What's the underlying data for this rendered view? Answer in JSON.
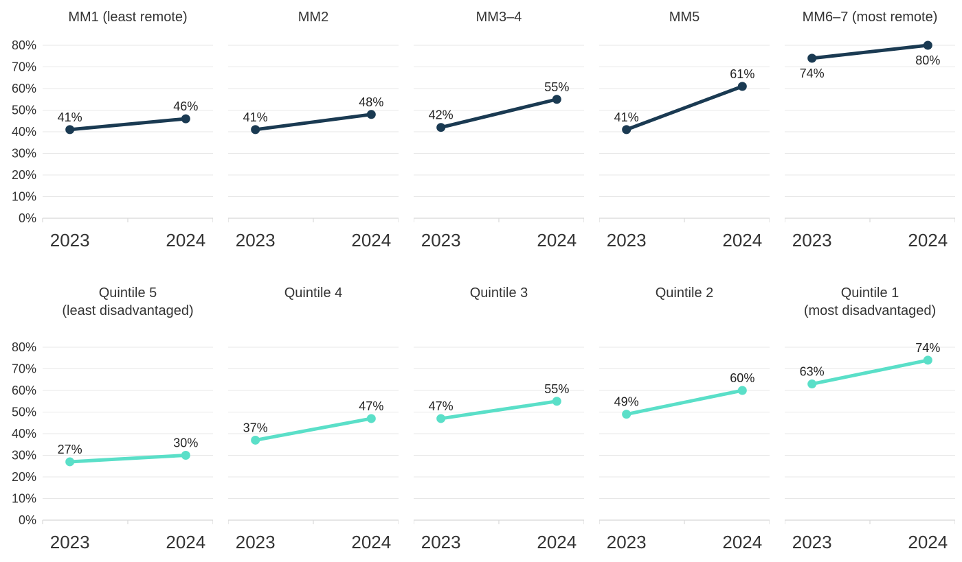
{
  "chart_data": {
    "type": "line",
    "layout_hint": "small multiples, 2 rows x 5 columns; shared y axis; gridlines on; no legend; y tick labels only on first chart of each row; x tick labels under every chart",
    "x": [
      "2023",
      "2024"
    ],
    "ylim": [
      0,
      80
    ],
    "ytick_step": 10,
    "ytick_labels": [
      "0%",
      "10%",
      "20%",
      "30%",
      "40%",
      "50%",
      "60%",
      "70%",
      "80%"
    ],
    "rows": [
      {
        "series_color": "#1a3a52",
        "charts": [
          {
            "title_lines": [
              "MM1 (least remote)"
            ],
            "values": [
              41,
              46
            ],
            "point_labels": [
              "41%",
              "46%"
            ],
            "label_side": "above"
          },
          {
            "title_lines": [
              "MM2"
            ],
            "values": [
              41,
              48
            ],
            "point_labels": [
              "41%",
              "48%"
            ],
            "label_side": "above"
          },
          {
            "title_lines": [
              "MM3–4"
            ],
            "values": [
              42,
              55
            ],
            "point_labels": [
              "42%",
              "55%"
            ],
            "label_side": "above"
          },
          {
            "title_lines": [
              "MM5"
            ],
            "values": [
              41,
              61
            ],
            "point_labels": [
              "41%",
              "61%"
            ],
            "label_side": "above"
          },
          {
            "title_lines": [
              "MM6–7 (most remote)"
            ],
            "values": [
              74,
              80
            ],
            "point_labels": [
              "74%",
              "80%"
            ],
            "label_side": "below"
          }
        ]
      },
      {
        "series_color": "#5adfc8",
        "charts": [
          {
            "title_lines": [
              "Quintile 5",
              "(least disadvantaged)"
            ],
            "values": [
              27,
              30
            ],
            "point_labels": [
              "27%",
              "30%"
            ],
            "label_side": "above"
          },
          {
            "title_lines": [
              "Quintile 4"
            ],
            "values": [
              37,
              47
            ],
            "point_labels": [
              "37%",
              "47%"
            ],
            "label_side": "above"
          },
          {
            "title_lines": [
              "Quintile 3"
            ],
            "values": [
              47,
              55
            ],
            "point_labels": [
              "47%",
              "55%"
            ],
            "label_side": "above"
          },
          {
            "title_lines": [
              "Quintile 2"
            ],
            "values": [
              49,
              60
            ],
            "point_labels": [
              "49%",
              "60%"
            ],
            "label_side": "above"
          },
          {
            "title_lines": [
              "Quintile 1",
              "(most disadvantaged)"
            ],
            "values": [
              63,
              74
            ],
            "point_labels": [
              "63%",
              "74%"
            ],
            "label_side": "above"
          }
        ]
      }
    ],
    "colors": {
      "row1_line": "#1a3a52",
      "row2_line": "#5adfc8",
      "gridline": "#e7e7e7",
      "axis_line": "#d8d8d8",
      "title_text": "#333333",
      "tick_text": "#333333",
      "data_label_text": "#222222",
      "background": "#ffffff"
    }
  }
}
